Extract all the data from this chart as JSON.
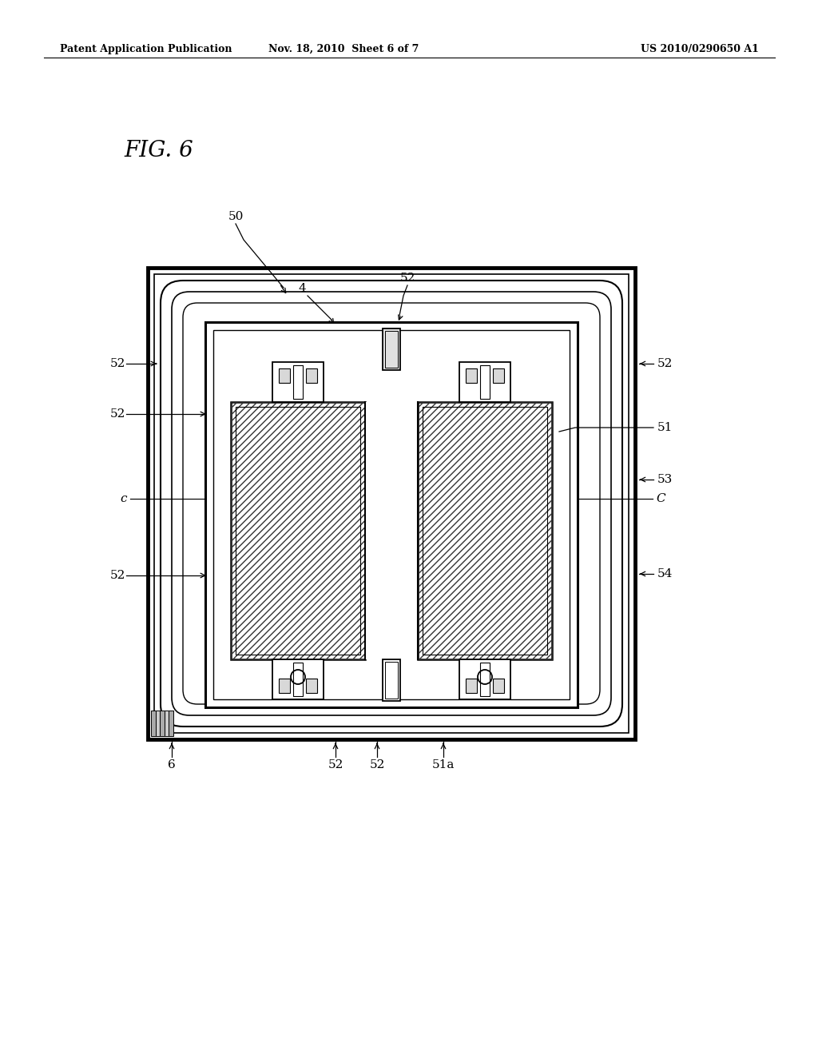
{
  "header_left": "Patent Application Publication",
  "header_mid": "Nov. 18, 2010  Sheet 6 of 7",
  "header_right": "US 2010/0290650 A1",
  "bg_color": "#ffffff",
  "line_color": "#000000",
  "fig_label": "FIG. 6"
}
